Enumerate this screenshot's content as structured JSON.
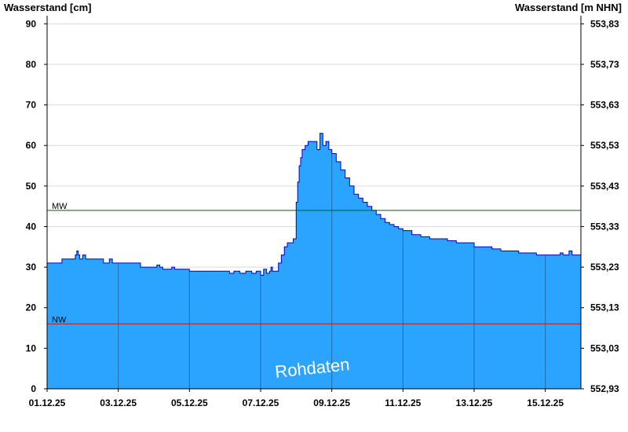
{
  "chart_data": {
    "type": "area",
    "left_axis_title": "Wasserstand [cm]",
    "right_axis_title": "Wasserstand [m NHN]",
    "watermark": "Rohdaten",
    "x_range": [
      "01.12.25",
      "16.12.25"
    ],
    "x_ticks": [
      "01.12.25",
      "03.12.25",
      "05.12.25",
      "07.12.25",
      "09.12.25",
      "11.12.25",
      "13.12.25",
      "15.12.25"
    ],
    "y_range": [
      0,
      92
    ],
    "y_ticks": [
      0,
      10,
      20,
      30,
      40,
      50,
      60,
      70,
      80,
      90
    ],
    "y2_range": [
      552.93,
      553.85
    ],
    "y2_ticks": [
      "552,93",
      "553,03",
      "553,13",
      "553,23",
      "553,33",
      "553,43",
      "553,53",
      "553,63",
      "553,73",
      "553,83"
    ],
    "grid": "horizontal",
    "reference_lines": [
      {
        "label": "MW",
        "value": 44,
        "color": "#006400"
      },
      {
        "label": "NW",
        "value": 16,
        "color": "#b22222"
      }
    ],
    "colors": {
      "fill": "#2aa4ff",
      "line": "#0000cc"
    },
    "series": [
      {
        "values": [
          [
            "01.12.25 00:00",
            31
          ],
          [
            "01.12.25 08:00",
            31
          ],
          [
            "01.12.25 10:00",
            32
          ],
          [
            "01.12.25 18:00",
            32
          ],
          [
            "01.12.25 19:00",
            33
          ],
          [
            "01.12.25 20:00",
            34
          ],
          [
            "01.12.25 21:00",
            33
          ],
          [
            "01.12.25 22:00",
            32
          ],
          [
            "02.12.25 00:00",
            33
          ],
          [
            "02.12.25 02:00",
            32
          ],
          [
            "02.12.25 12:00",
            32
          ],
          [
            "02.12.25 14:00",
            31
          ],
          [
            "02.12.25 18:00",
            32
          ],
          [
            "02.12.25 20:00",
            31
          ],
          [
            "03.12.25 00:00",
            31
          ],
          [
            "03.12.25 12:00",
            31
          ],
          [
            "03.12.25 15:00",
            30
          ],
          [
            "04.12.25 00:00",
            30
          ],
          [
            "04.12.25 02:00",
            30.5
          ],
          [
            "04.12.25 04:00",
            30
          ],
          [
            "04.12.25 06:00",
            29.5
          ],
          [
            "04.12.25 12:00",
            30
          ],
          [
            "04.12.25 14:00",
            29.5
          ],
          [
            "04.12.25 20:00",
            29.5
          ],
          [
            "05.12.25 00:00",
            29
          ],
          [
            "05.12.25 12:00",
            29
          ],
          [
            "05.12.25 20:00",
            29
          ],
          [
            "06.12.25 00:00",
            29
          ],
          [
            "06.12.25 03:00",
            28.5
          ],
          [
            "06.12.25 06:00",
            29
          ],
          [
            "06.12.25 10:00",
            28.5
          ],
          [
            "06.12.25 14:00",
            29
          ],
          [
            "06.12.25 18:00",
            28.5
          ],
          [
            "06.12.25 21:00",
            29
          ],
          [
            "07.12.25 00:00",
            28
          ],
          [
            "07.12.25 02:00",
            29.5
          ],
          [
            "07.12.25 04:00",
            28.5
          ],
          [
            "07.12.25 06:00",
            29
          ],
          [
            "07.12.25 07:00",
            30
          ],
          [
            "07.12.25 08:00",
            29
          ],
          [
            "07.12.25 10:00",
            29
          ],
          [
            "07.12.25 12:00",
            31
          ],
          [
            "07.12.25 14:00",
            33
          ],
          [
            "07.12.25 16:00",
            35
          ],
          [
            "07.12.25 18:00",
            36
          ],
          [
            "07.12.25 20:00",
            36
          ],
          [
            "07.12.25 22:00",
            37
          ],
          [
            "08.12.25 00:00",
            46
          ],
          [
            "08.12.25 01:00",
            51
          ],
          [
            "08.12.25 02:00",
            55
          ],
          [
            "08.12.25 03:00",
            57
          ],
          [
            "08.12.25 04:00",
            59
          ],
          [
            "08.12.25 06:00",
            60
          ],
          [
            "08.12.25 08:00",
            61
          ],
          [
            "08.12.25 10:00",
            61
          ],
          [
            "08.12.25 12:00",
            61
          ],
          [
            "08.12.25 14:00",
            59
          ],
          [
            "08.12.25 16:00",
            63
          ],
          [
            "08.12.25 18:00",
            60
          ],
          [
            "08.12.25 20:00",
            61
          ],
          [
            "08.12.25 22:00",
            59
          ],
          [
            "09.12.25 00:00",
            58
          ],
          [
            "09.12.25 03:00",
            56
          ],
          [
            "09.12.25 06:00",
            54
          ],
          [
            "09.12.25 09:00",
            52
          ],
          [
            "09.12.25 12:00",
            50
          ],
          [
            "09.12.25 15:00",
            48
          ],
          [
            "09.12.25 18:00",
            47
          ],
          [
            "09.12.25 21:00",
            46
          ],
          [
            "10.12.25 00:00",
            45
          ],
          [
            "10.12.25 03:00",
            44
          ],
          [
            "10.12.25 06:00",
            43
          ],
          [
            "10.12.25 09:00",
            42
          ],
          [
            "10.12.25 12:00",
            41
          ],
          [
            "10.12.25 15:00",
            40.5
          ],
          [
            "10.12.25 18:00",
            40
          ],
          [
            "10.12.25 21:00",
            39.5
          ],
          [
            "11.12.25 00:00",
            39
          ],
          [
            "11.12.25 06:00",
            38
          ],
          [
            "11.12.25 12:00",
            37.5
          ],
          [
            "11.12.25 18:00",
            37
          ],
          [
            "12.12.25 00:00",
            37
          ],
          [
            "12.12.25 06:00",
            36.5
          ],
          [
            "12.12.25 12:00",
            36
          ],
          [
            "12.12.25 18:00",
            36
          ],
          [
            "13.12.25 00:00",
            35
          ],
          [
            "13.12.25 06:00",
            35
          ],
          [
            "13.12.25 12:00",
            34.5
          ],
          [
            "13.12.25 18:00",
            34
          ],
          [
            "14.12.25 00:00",
            34
          ],
          [
            "14.12.25 06:00",
            33.5
          ],
          [
            "14.12.25 12:00",
            33.5
          ],
          [
            "14.12.25 18:00",
            33
          ],
          [
            "15.12.25 00:00",
            33
          ],
          [
            "15.12.25 06:00",
            33
          ],
          [
            "15.12.25 10:00",
            33.5
          ],
          [
            "15.12.25 12:00",
            33
          ],
          [
            "15.12.25 16:00",
            34
          ],
          [
            "15.12.25 18:00",
            33
          ],
          [
            "15.12.25 22:00",
            33
          ],
          [
            "16.12.25 00:00",
            33
          ]
        ]
      }
    ]
  }
}
